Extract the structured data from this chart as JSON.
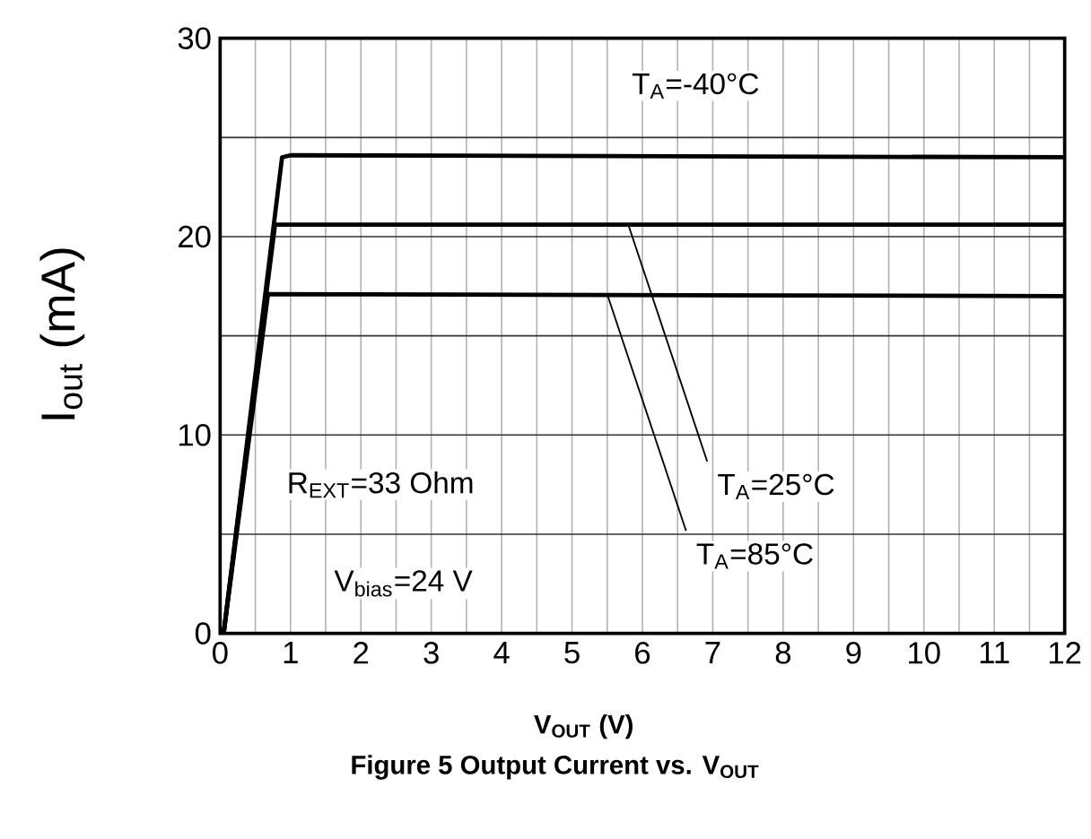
{
  "chart_data": {
    "type": "line",
    "title": "Figure 5 Output Current vs. V$_{OUT}$",
    "xlabel": "V$_{OUT}$ (V)",
    "ylabel": "I$_{out}$ (mA)",
    "xlim": [
      0,
      12
    ],
    "ylim": [
      0,
      30
    ],
    "xticks": [
      0,
      {
        "value": 0.5,
        "label": null
      },
      1,
      {
        "value": 1.5,
        "label": null
      },
      2,
      {
        "value": 2.5,
        "label": null
      },
      3,
      {
        "value": 3.5,
        "label": null
      },
      4,
      {
        "value": 4.5,
        "label": null
      },
      5,
      {
        "value": 5.5,
        "label": null
      },
      6,
      {
        "value": 6.5,
        "label": null
      },
      7,
      {
        "value": 7.5,
        "label": null
      },
      8,
      {
        "value": 8.5,
        "label": null
      },
      9,
      {
        "value": 9.5,
        "label": null
      },
      10,
      {
        "value": 10.5,
        "label": null
      },
      11,
      {
        "value": 11.5,
        "label": null
      },
      12
    ],
    "yticks": [
      0,
      {
        "value": 5,
        "label": null
      },
      10,
      {
        "value": 15,
        "label": null
      },
      20,
      {
        "value": 25,
        "label": null
      },
      30
    ],
    "grid": true,
    "series": [
      {
        "color": "#000000",
        "x": [
          0.05,
          0.88,
          1,
          12
        ],
        "values": [
          0,
          24.0,
          24.1,
          24.0
        ]
      },
      {
        "color": "#000000",
        "x": [
          0.05,
          0.78,
          12
        ],
        "values": [
          0,
          20.6,
          20.6
        ]
      },
      {
        "color": "#000000",
        "x": [
          0.05,
          0.68,
          12
        ],
        "values": [
          0,
          17.1,
          17.0
        ]
      }
    ],
    "annotations": [
      "T$_{A}$=-40°C",
      {
        "text": "T$_{A}$=25°C",
        "x": 5.8,
        "y": 20.6
      },
      {
        "text": "T$_{A}$=85°C",
        "x": 5.5,
        "y": 17.1
      },
      "R$_{EXT}$=33 Ohm",
      "V$_{bias}$=24 V"
    ]
  }
}
